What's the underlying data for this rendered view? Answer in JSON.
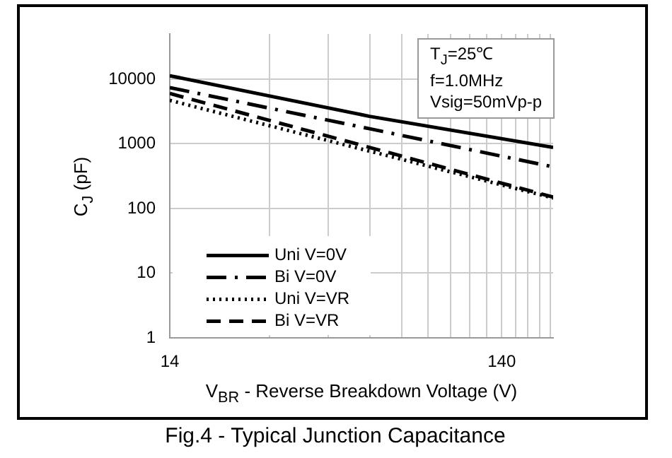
{
  "chart_data": {
    "type": "line",
    "title": "Fig.4 - Typical Junction Capacitance",
    "xlabel": "V$_{BR}$ - Reverse Breakdown Voltage (V)",
    "ylabel": "C$_{J}$ (pF)",
    "annotations": [
      "T$_{J}$=25℃",
      "f=1.0MHz",
      "Vsig=50mVp-p"
    ],
    "log": "xy",
    "xlim": [
      14,
      200
    ],
    "xticks": [
      14,
      {
        "value": 28,
        "label": null
      },
      {
        "value": 42,
        "label": null
      },
      {
        "value": 56,
        "label": null
      },
      {
        "value": 70,
        "label": null
      },
      {
        "value": 84,
        "label": null
      },
      {
        "value": 98,
        "label": null
      },
      {
        "value": 112,
        "label": null
      },
      {
        "value": 126,
        "label": null
      },
      140,
      {
        "value": 154,
        "label": null
      },
      {
        "value": 168,
        "label": null
      },
      {
        "value": 182,
        "label": null
      },
      {
        "value": 196,
        "label": null
      }
    ],
    "ylim": [
      1,
      50000
    ],
    "yticks": [
      1,
      10,
      100,
      1000,
      10000
    ],
    "grid": true,
    "legend": "bottom left",
    "marker": "none",
    "series": [
      {
        "name": "Uni V=0V",
        "color": "#000000",
        "line_style": "solid",
        "x": [
          14,
          56,
          200
        ],
        "values": [
          11300,
          2660,
          880
        ]
      },
      {
        "name": "Bi V=0V",
        "color": "#000000",
        "line_style": "dashdot",
        "x": [
          14,
          56,
          200
        ],
        "values": [
          7400,
          1710,
          440
        ]
      },
      {
        "name": "Uni V=VR",
        "color": "#000000",
        "line_style": "dotted",
        "x": [
          14,
          56,
          200
        ],
        "values": [
          4700,
          770,
          145
        ]
      },
      {
        "name": "Bi V=VR",
        "color": "#000000",
        "line_style": "dashed",
        "x": [
          14,
          56,
          200
        ],
        "values": [
          6000,
          880,
          150
        ]
      }
    ]
  }
}
